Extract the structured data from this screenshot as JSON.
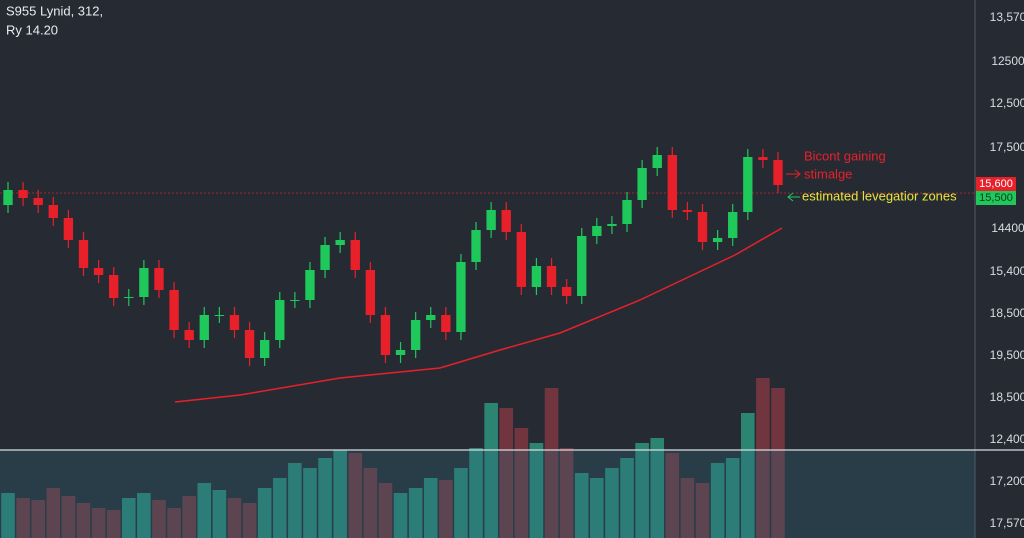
{
  "chart_data": {
    "type": "candlestick",
    "title": "S955 Lynid, 312,",
    "subtitle": "Ry 14.20",
    "annotations": [
      {
        "text": "Bicont gaining",
        "color": "#e8202a"
      },
      {
        "text": "stimalge",
        "color": "#e8202a"
      },
      {
        "text": "estimated levegatior zones",
        "color": "#e6e63a"
      }
    ],
    "axis_labels": [
      "13,570",
      "12500",
      "12,500",
      "17,500",
      "14400",
      "15,400",
      "18,500",
      "19,500",
      "18,500",
      "12,400",
      "17,200",
      "17,570"
    ],
    "price_tags": [
      {
        "label": "15,600",
        "color": "#e8202a"
      },
      {
        "label": "15,500",
        "color": "#1ec85a"
      }
    ],
    "up_color": "#1ec85a",
    "down_color": "#e8202a",
    "ylim": [
      0,
      538
    ],
    "open": [
      333,
      348,
      340,
      333,
      320,
      298,
      270,
      263,
      240,
      241,
      270,
      248,
      208,
      198,
      223,
      223,
      208,
      180,
      198,
      238,
      238,
      268,
      293,
      298,
      268,
      223,
      183,
      188,
      218,
      223,
      206,
      276,
      308,
      328,
      306,
      251,
      272,
      251,
      242,
      302,
      312,
      314,
      338,
      370,
      383,
      328,
      326,
      296,
      300,
      326,
      381,
      378
    ],
    "high": [
      356,
      356,
      348,
      341,
      328,
      306,
      278,
      271,
      249,
      278,
      278,
      256,
      216,
      231,
      231,
      231,
      216,
      206,
      246,
      246,
      276,
      301,
      306,
      306,
      276,
      231,
      196,
      226,
      231,
      231,
      284,
      316,
      336,
      336,
      314,
      280,
      280,
      259,
      310,
      320,
      322,
      346,
      378,
      391,
      391,
      336,
      334,
      308,
      334,
      389,
      389,
      386
    ],
    "low": [
      325,
      332,
      325,
      312,
      290,
      262,
      255,
      232,
      232,
      233,
      240,
      200,
      190,
      190,
      215,
      200,
      172,
      172,
      190,
      230,
      230,
      260,
      285,
      260,
      215,
      175,
      175,
      180,
      210,
      198,
      198,
      268,
      300,
      298,
      243,
      243,
      243,
      234,
      234,
      294,
      304,
      306,
      330,
      362,
      320,
      318,
      288,
      288,
      292,
      318,
      370,
      345
    ],
    "close": [
      348,
      340,
      333,
      320,
      298,
      270,
      263,
      240,
      241,
      270,
      248,
      208,
      198,
      223,
      223,
      208,
      180,
      198,
      238,
      238,
      268,
      293,
      298,
      268,
      223,
      183,
      188,
      218,
      223,
      206,
      276,
      308,
      328,
      306,
      251,
      272,
      251,
      242,
      302,
      312,
      314,
      338,
      370,
      383,
      328,
      326,
      296,
      300,
      326,
      381,
      378,
      353
    ],
    "volume": [
      45,
      40,
      38,
      50,
      42,
      35,
      30,
      28,
      40,
      45,
      38,
      30,
      42,
      55,
      48,
      40,
      35,
      50,
      60,
      75,
      70,
      80,
      88,
      85,
      70,
      55,
      45,
      50,
      60,
      58,
      70,
      90,
      135,
      130,
      110,
      95,
      150,
      90,
      65,
      60,
      70,
      80,
      95,
      100,
      85,
      60,
      55,
      75,
      80,
      125,
      160,
      150
    ],
    "volume_lim": [
      0,
      160
    ]
  }
}
